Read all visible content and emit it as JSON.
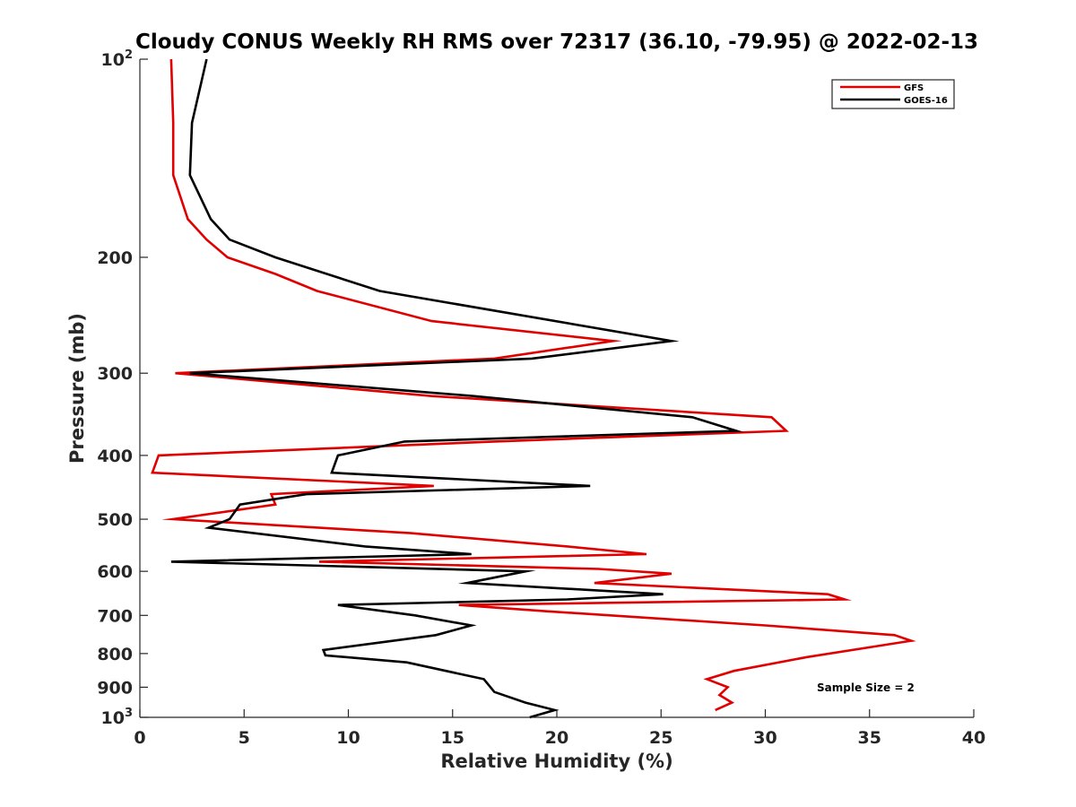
{
  "chart_data": {
    "type": "line",
    "title": "Cloudy CONUS Weekly RH RMS over 72317 (36.10, -79.95) @ 2022-02-13",
    "xlabel": "Relative Humidity (%)",
    "ylabel": "Pressure (mb)",
    "xlim": [
      0,
      40
    ],
    "ylim": [
      100,
      1000
    ],
    "yscale": "log",
    "y_reversed": true,
    "grid": false,
    "legend_position": "top-right",
    "x_ticks": [
      {
        "value": 0,
        "label": "0"
      },
      {
        "value": 5,
        "label": "5"
      },
      {
        "value": 10,
        "label": "10"
      },
      {
        "value": 15,
        "label": "15"
      },
      {
        "value": 20,
        "label": "20"
      },
      {
        "value": 25,
        "label": "25"
      },
      {
        "value": 30,
        "label": "30"
      },
      {
        "value": 35,
        "label": "35"
      },
      {
        "value": 40,
        "label": "40"
      }
    ],
    "y_ticks": [
      {
        "value": 100,
        "label": "10",
        "sup": "2"
      },
      {
        "value": 200,
        "label": "200",
        "sup": ""
      },
      {
        "value": 300,
        "label": "300",
        "sup": ""
      },
      {
        "value": 400,
        "label": "400",
        "sup": ""
      },
      {
        "value": 500,
        "label": "500",
        "sup": ""
      },
      {
        "value": 600,
        "label": "600",
        "sup": ""
      },
      {
        "value": 700,
        "label": "700",
        "sup": ""
      },
      {
        "value": 800,
        "label": "800",
        "sup": ""
      },
      {
        "value": 900,
        "label": "900",
        "sup": ""
      },
      {
        "value": 1000,
        "label": "10",
        "sup": "3"
      }
    ],
    "annotation": "Sample Size = 2",
    "series": [
      {
        "name": "GFS",
        "color": "#e00000",
        "points": [
          {
            "rh": 1.5,
            "p": 100
          },
          {
            "rh": 1.6,
            "p": 125
          },
          {
            "rh": 1.6,
            "p": 150
          },
          {
            "rh": 2.3,
            "p": 175
          },
          {
            "rh": 3.2,
            "p": 188
          },
          {
            "rh": 4.2,
            "p": 200
          },
          {
            "rh": 6.5,
            "p": 212
          },
          {
            "rh": 8.5,
            "p": 225
          },
          {
            "rh": 14.0,
            "p": 250
          },
          {
            "rh": 22.7,
            "p": 268
          },
          {
            "rh": 17.0,
            "p": 285
          },
          {
            "rh": 1.7,
            "p": 300
          },
          {
            "rh": 14.0,
            "p": 325
          },
          {
            "rh": 30.3,
            "p": 350
          },
          {
            "rh": 31.0,
            "p": 367
          },
          {
            "rh": 17.0,
            "p": 381
          },
          {
            "rh": 0.9,
            "p": 400
          },
          {
            "rh": 0.6,
            "p": 425
          },
          {
            "rh": 14.1,
            "p": 445
          },
          {
            "rh": 6.3,
            "p": 458
          },
          {
            "rh": 6.5,
            "p": 475
          },
          {
            "rh": 1.6,
            "p": 500
          },
          {
            "rh": 13.0,
            "p": 525
          },
          {
            "rh": 20.5,
            "p": 550
          },
          {
            "rh": 24.3,
            "p": 565
          },
          {
            "rh": 8.6,
            "p": 580
          },
          {
            "rh": 22.0,
            "p": 595
          },
          {
            "rh": 25.5,
            "p": 605
          },
          {
            "rh": 21.8,
            "p": 625
          },
          {
            "rh": 33.0,
            "p": 650
          },
          {
            "rh": 33.8,
            "p": 662
          },
          {
            "rh": 15.3,
            "p": 675
          },
          {
            "rh": 19.5,
            "p": 690
          },
          {
            "rh": 30.0,
            "p": 725
          },
          {
            "rh": 36.2,
            "p": 750
          },
          {
            "rh": 37.0,
            "p": 765
          },
          {
            "rh": 32.0,
            "p": 810
          },
          {
            "rh": 28.5,
            "p": 850
          },
          {
            "rh": 27.2,
            "p": 875
          },
          {
            "rh": 28.2,
            "p": 900
          },
          {
            "rh": 27.8,
            "p": 925
          },
          {
            "rh": 28.4,
            "p": 950
          },
          {
            "rh": 27.6,
            "p": 975
          }
        ]
      },
      {
        "name": "GOES-16",
        "color": "#000000",
        "points": [
          {
            "rh": 3.2,
            "p": 100
          },
          {
            "rh": 2.5,
            "p": 125
          },
          {
            "rh": 2.4,
            "p": 150
          },
          {
            "rh": 3.4,
            "p": 175
          },
          {
            "rh": 4.3,
            "p": 188
          },
          {
            "rh": 6.5,
            "p": 200
          },
          {
            "rh": 11.5,
            "p": 225
          },
          {
            "rh": 25.5,
            "p": 268
          },
          {
            "rh": 18.8,
            "p": 285
          },
          {
            "rh": 2.4,
            "p": 300
          },
          {
            "rh": 16.0,
            "p": 325
          },
          {
            "rh": 26.5,
            "p": 350
          },
          {
            "rh": 28.6,
            "p": 367
          },
          {
            "rh": 12.7,
            "p": 381
          },
          {
            "rh": 9.5,
            "p": 400
          },
          {
            "rh": 9.2,
            "p": 425
          },
          {
            "rh": 21.6,
            "p": 445
          },
          {
            "rh": 8.0,
            "p": 458
          },
          {
            "rh": 4.8,
            "p": 475
          },
          {
            "rh": 4.3,
            "p": 500
          },
          {
            "rh": 3.3,
            "p": 515
          },
          {
            "rh": 10.8,
            "p": 550
          },
          {
            "rh": 15.9,
            "p": 565
          },
          {
            "rh": 1.5,
            "p": 580
          },
          {
            "rh": 18.5,
            "p": 600
          },
          {
            "rh": 15.7,
            "p": 625
          },
          {
            "rh": 25.1,
            "p": 650
          },
          {
            "rh": 20.5,
            "p": 662
          },
          {
            "rh": 9.5,
            "p": 675
          },
          {
            "rh": 13.2,
            "p": 700
          },
          {
            "rh": 15.9,
            "p": 725
          },
          {
            "rh": 14.2,
            "p": 750
          },
          {
            "rh": 8.8,
            "p": 790
          },
          {
            "rh": 8.9,
            "p": 805
          },
          {
            "rh": 12.8,
            "p": 825
          },
          {
            "rh": 16.5,
            "p": 875
          },
          {
            "rh": 17.0,
            "p": 915
          },
          {
            "rh": 18.5,
            "p": 950
          },
          {
            "rh": 19.9,
            "p": 975
          },
          {
            "rh": 18.7,
            "p": 1000
          }
        ]
      }
    ]
  }
}
